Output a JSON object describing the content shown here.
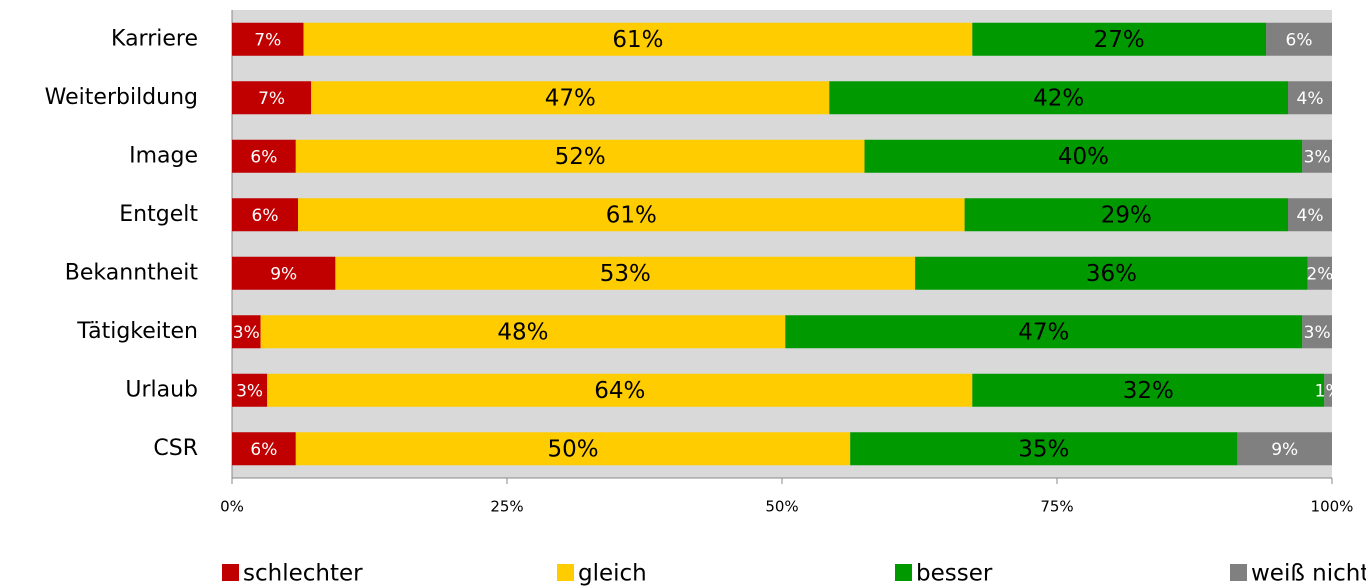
{
  "chart_data": {
    "type": "stacked_barh",
    "categories": [
      "Karriere",
      "Weiterbildung",
      "Image",
      "Entgelt",
      "Bekanntheit",
      "Tätigkeiten",
      "Urlaub",
      "CSR"
    ],
    "series": [
      {
        "name": "schlechter",
        "color": "#c00000",
        "values": [
          6.5,
          7.2,
          5.8,
          6.0,
          9.4,
          2.6,
          3.2,
          5.8
        ],
        "value_labels": [
          "7%",
          "7%",
          "6%",
          "6%",
          "9%",
          "3%",
          "3%",
          "6%"
        ]
      },
      {
        "name": "gleich",
        "color": "#ffcc00",
        "values": [
          60.8,
          47.1,
          51.7,
          60.6,
          52.7,
          47.7,
          64.1,
          50.4
        ],
        "value_labels": [
          "61%",
          "47%",
          "52%",
          "61%",
          "53%",
          "48%",
          "64%",
          "50%"
        ]
      },
      {
        "name": "besser",
        "color": "#009900",
        "values": [
          26.7,
          41.7,
          39.8,
          29.4,
          35.7,
          47.0,
          32.0,
          35.2
        ],
        "value_labels": [
          "27%",
          "42%",
          "40%",
          "29%",
          "36%",
          "47%",
          "32%",
          "35%"
        ]
      },
      {
        "name": "weiß nicht",
        "color": "#808080",
        "values": [
          6.0,
          4.0,
          2.7,
          4.0,
          2.2,
          2.7,
          0.7,
          8.6
        ],
        "value_labels": [
          "6%",
          "4%",
          "3%",
          "4%",
          "2%",
          "3%",
          "1%",
          "9%"
        ]
      }
    ],
    "xlim": [
      0,
      100
    ],
    "xticks": [
      {
        "value": 0,
        "label": "0%"
      },
      {
        "value": 25,
        "label": "25%"
      },
      {
        "value": 50,
        "label": "50%"
      },
      {
        "value": 75,
        "label": "75%"
      },
      {
        "value": 100,
        "label": "100%"
      }
    ],
    "legend": "bottom"
  }
}
